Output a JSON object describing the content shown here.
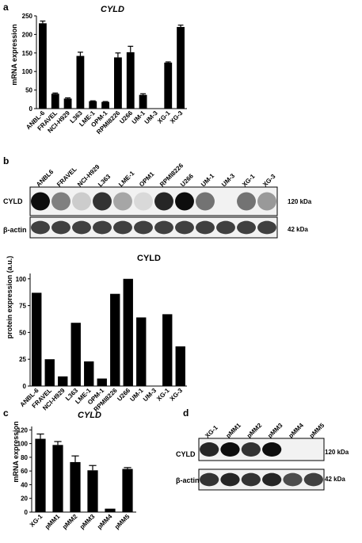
{
  "panels": {
    "a": "a",
    "b": "b",
    "c": "c",
    "d": "d"
  },
  "blot_b": {
    "lanes": [
      "ANBL6",
      "FRAVEL",
      "NCI-H929",
      "L363",
      "LME-1",
      "OPM1",
      "RPMI8226",
      "U266",
      "UM-1",
      "UM-3",
      "XG-1",
      "XG-3"
    ],
    "rows": [
      {
        "label": "CYLD",
        "kda": "120 kDa",
        "intensity": [
          0.95,
          0.5,
          0.2,
          0.8,
          0.35,
          0.15,
          0.85,
          0.95,
          0.55,
          0.0,
          0.55,
          0.4
        ]
      },
      {
        "label": "β-actin",
        "kda": "42 kDa",
        "intensity": [
          0.75,
          0.75,
          0.75,
          0.75,
          0.75,
          0.75,
          0.75,
          0.75,
          0.75,
          0.75,
          0.75,
          0.75
        ]
      }
    ]
  },
  "blot_d": {
    "lanes": [
      "XG-1",
      "pMM1",
      "pMM2",
      "pMM3",
      "pMM4",
      "pMM5"
    ],
    "rows": [
      {
        "label": "CYLD",
        "kda": "120 kDa",
        "intensity": [
          0.85,
          0.95,
          0.8,
          0.95,
          0.0,
          0.0
        ]
      },
      {
        "label": "β-actin",
        "kda": "42 kDa",
        "intensity": [
          0.8,
          0.85,
          0.8,
          0.85,
          0.7,
          0.75
        ]
      }
    ]
  },
  "chart_data": [
    {
      "id": "a",
      "type": "bar",
      "title": "CYLD",
      "ylabel": "mRNA expression",
      "categories": [
        "ANBL-6",
        "FRAVEL",
        "NCI-H929",
        "L363",
        "LME-1",
        "OPM-1",
        "RPMI8226",
        "U266",
        "UM-1",
        "UM-3",
        "XG-1",
        "XG-3"
      ],
      "values": [
        230,
        40,
        27,
        142,
        20,
        18,
        138,
        152,
        37,
        0,
        124,
        220
      ],
      "errors": [
        6,
        2,
        2,
        10,
        1,
        1,
        12,
        16,
        3,
        0,
        2,
        5
      ],
      "yticks": [
        0,
        50,
        100,
        150,
        200,
        250
      ],
      "ylim": [
        0,
        250
      ]
    },
    {
      "id": "b",
      "type": "bar",
      "title": "CYLD",
      "ylabel": "protein expression (a.u.)",
      "categories": [
        "ANBL-6",
        "FRAVEL",
        "NCI-H929",
        "L363",
        "LME-1",
        "OPM-1",
        "RPMI8226",
        "U266",
        "UM-1",
        "UM-3",
        "XG-1",
        "XG-3"
      ],
      "values": [
        87,
        25,
        9,
        59,
        23,
        7,
        86,
        100,
        64,
        0,
        67,
        37
      ],
      "yticks": [
        0,
        25,
        50,
        75,
        100
      ],
      "ylim": [
        0,
        105
      ]
    },
    {
      "id": "c",
      "type": "bar",
      "title": "CYLD",
      "ylabel": "mRNA expression",
      "categories": [
        "XG-1",
        "pMM1",
        "pMM2",
        "pMM3",
        "pMM4",
        "pMM5"
      ],
      "values": [
        107,
        98,
        73,
        61,
        5,
        63
      ],
      "errors": [
        7,
        5,
        9,
        7,
        0,
        2
      ],
      "yticks": [
        0,
        20,
        40,
        60,
        80,
        100,
        120
      ],
      "ylim": [
        0,
        125
      ]
    }
  ]
}
